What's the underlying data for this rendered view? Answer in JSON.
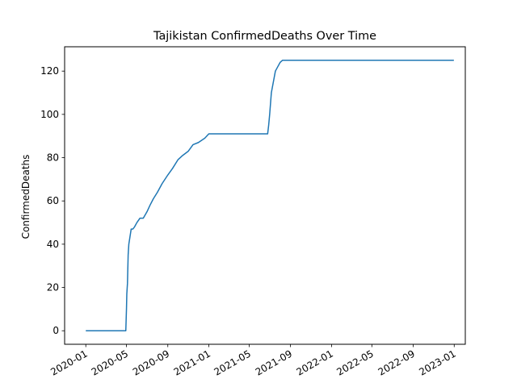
{
  "chart_data": {
    "type": "line",
    "title": "Tajikistan  ConfirmedDeaths Over Time",
    "xlabel": "",
    "ylabel": "ConfirmedDeaths",
    "x_tick_labels": [
      "2020-01",
      "2020-05",
      "2020-09",
      "2021-01",
      "2021-05",
      "2021-09",
      "2022-01",
      "2022-05",
      "2022-09",
      "2023-01"
    ],
    "y_tick_labels": [
      "0",
      "20",
      "40",
      "60",
      "80",
      "100",
      "120"
    ],
    "xlim": [
      "2019-10-30",
      "2023-02-03"
    ],
    "ylim": [
      -6.25,
      131.25
    ],
    "grid": false,
    "line_color": "#1f77b4",
    "series": [
      {
        "x": [
          "2020-01-01",
          "2020-04-29",
          "2020-04-30",
          "2020-05-01",
          "2020-05-02",
          "2020-05-04",
          "2020-05-06",
          "2020-05-08",
          "2020-05-12",
          "2020-05-15",
          "2020-05-20",
          "2020-05-25",
          "2020-06-01",
          "2020-06-10",
          "2020-06-20",
          "2020-07-01",
          "2020-07-10",
          "2020-07-20",
          "2020-08-01",
          "2020-08-15",
          "2020-09-01",
          "2020-09-15",
          "2020-10-01",
          "2020-10-15",
          "2020-11-01",
          "2020-11-15",
          "2020-12-01",
          "2020-12-20",
          "2021-01-01",
          "2021-06-25",
          "2021-06-28",
          "2021-07-01",
          "2021-07-06",
          "2021-07-12",
          "2021-07-18",
          "2021-07-25",
          "2021-08-01",
          "2021-08-08",
          "2021-08-15",
          "2022-12-31"
        ],
        "y": [
          0,
          0,
          5,
          10,
          17,
          22,
          35,
          40,
          44,
          47,
          47,
          48,
          50,
          52,
          52,
          55,
          58,
          61,
          64,
          68,
          72,
          75,
          79,
          81,
          83,
          86,
          87,
          89,
          91,
          91,
          95,
          100,
          110,
          115,
          120,
          122,
          124,
          125,
          125,
          125
        ]
      }
    ]
  }
}
